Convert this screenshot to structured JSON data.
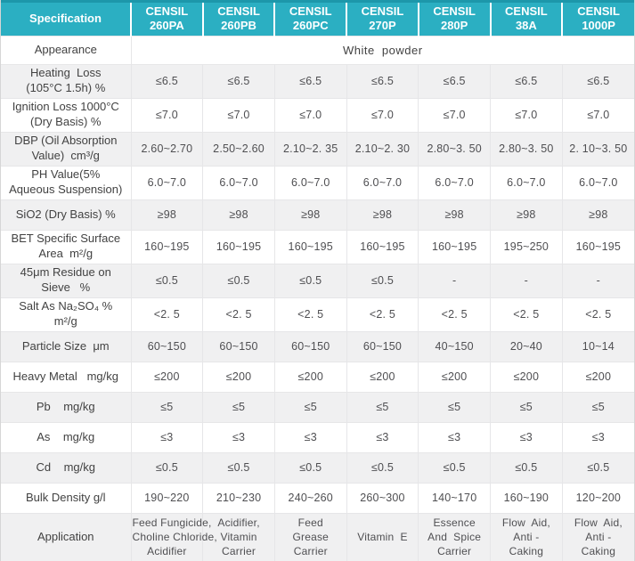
{
  "colors": {
    "header_bg": "#2bafc2",
    "header_top_edge": "#1d97aa",
    "alt_row_bg": "#f0f0f1",
    "header_text": "#ffffff",
    "body_text": "#4f4f52"
  },
  "header": {
    "spec_label": "Specification",
    "columns": [
      "CENSIL\n260PA",
      "CENSIL\n260PB",
      "CENSIL\n260PC",
      "CENSIL\n270P",
      "CENSIL\n280P",
      "CENSIL\n38A",
      "CENSIL\n1000P"
    ]
  },
  "rows": [
    {
      "label": "Appearance",
      "merged": "White  powder"
    },
    {
      "label": "Heating  Loss\n(105°C 1.5h) %",
      "values": [
        "≤6.5",
        "≤6.5",
        "≤6.5",
        "≤6.5",
        "≤6.5",
        "≤6.5",
        "≤6.5"
      ]
    },
    {
      "label": "Ignition Loss 1000°C\n(Dry Basis) %",
      "values": [
        "≤7.0",
        "≤7.0",
        "≤7.0",
        "≤7.0",
        "≤7.0",
        "≤7.0",
        "≤7.0"
      ]
    },
    {
      "label": "DBP (Oil Absorption\nValue)  cm³/g",
      "values": [
        "2.60~2.70",
        "2.50~2.60",
        "2.10~2. 35",
        "2.10~2. 30",
        "2.80~3. 50",
        "2.80~3. 50",
        "2. 10~3. 50"
      ]
    },
    {
      "label": "PH Value(5%\nAqueous Suspension)",
      "values": [
        "6.0~7.0",
        "6.0~7.0",
        "6.0~7.0",
        "6.0~7.0",
        "6.0~7.0",
        "6.0~7.0",
        "6.0~7.0"
      ]
    },
    {
      "label": "SiO2 (Dry Basis) %",
      "values": [
        "≥98",
        "≥98",
        "≥98",
        "≥98",
        "≥98",
        "≥98",
        "≥98"
      ]
    },
    {
      "label": "BET Specific Surface\nArea  m²/g",
      "values": [
        "160~195",
        "160~195",
        "160~195",
        "160~195",
        "160~195",
        "195~250",
        "160~195"
      ]
    },
    {
      "label": "45μm Residue on\nSieve   %",
      "values": [
        "≤0.5",
        "≤0.5",
        "≤0.5",
        "≤0.5",
        "-",
        "-",
        "-"
      ]
    },
    {
      "label": "Salt As Na₂SO₄ %\nm²/g",
      "values": [
        "<2. 5",
        "<2. 5",
        "<2. 5",
        "<2. 5",
        "<2. 5",
        "<2. 5",
        "<2. 5"
      ]
    },
    {
      "label": "Particle Size  μm",
      "values": [
        "60~150",
        "60~150",
        "60~150",
        "60~150",
        "40~150",
        "20~40",
        "10~14"
      ]
    },
    {
      "label": "Heavy Metal   mg/kg",
      "values": [
        "≤200",
        "≤200",
        "≤200",
        "≤200",
        "≤200",
        "≤200",
        "≤200"
      ]
    },
    {
      "label": "Pb    mg/kg",
      "values": [
        "≤5",
        "≤5",
        "≤5",
        "≤5",
        "≤5",
        "≤5",
        "≤5"
      ]
    },
    {
      "label": "As    mg/kg",
      "values": [
        "≤3",
        "≤3",
        "≤3",
        "≤3",
        "≤3",
        "≤3",
        "≤3"
      ]
    },
    {
      "label": "Cd    mg/kg",
      "values": [
        "≤0.5",
        "≤0.5",
        "≤0.5",
        "≤0.5",
        "≤0.5",
        "≤0.5",
        "≤0.5"
      ]
    },
    {
      "label": "Bulk Density g/l",
      "values": [
        "190~220",
        "210~230",
        "240~260",
        "260~300",
        "140~170",
        "160~190",
        "120~200"
      ]
    },
    {
      "label": "Application",
      "values": [
        "Feed Fungicide,\nCholine Chloride,\nAcidifier",
        "Acidifier,\nVitamin\nCarrier",
        "Feed\nGrease\nCarrier",
        "Vitamin  E",
        "Essence\nAnd  Spice\nCarrier",
        "Flow  Aid,\nAnti -\nCaking",
        "Flow  Aid,\nAnti -\nCaking"
      ]
    }
  ]
}
